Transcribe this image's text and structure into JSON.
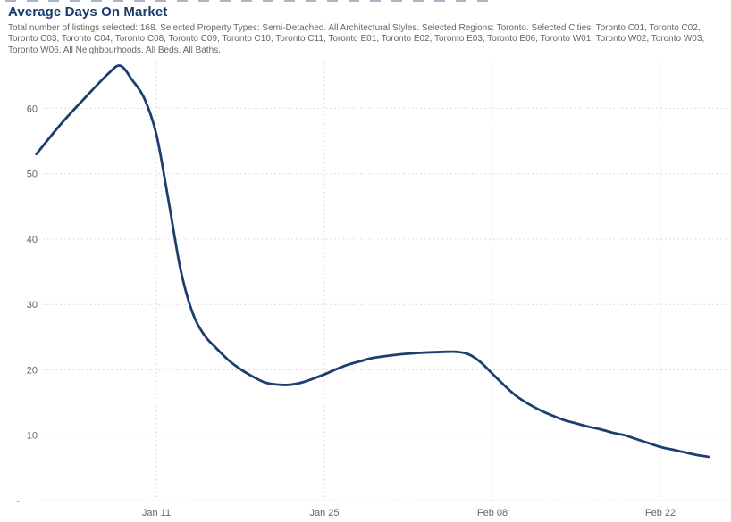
{
  "page": {
    "title": "Average Days On Market",
    "subtitle": "Total number of listings selected: 168. Selected Property Types: Semi-Detached. All Architectural Styles. Selected Regions: Toronto. Selected Cities: Toronto C01, Toronto C02, Toronto C03, Toronto C04, Toronto C08, Toronto C09, Toronto C10, Toronto C11, Toronto E01, Toronto E02, Toronto E03, Toronto E06, Toronto W01, Toronto W02, Toronto W03, Toronto W06. All Neighbourhoods. All Beds. All Baths."
  },
  "colors": {
    "title": "#1a3a6b",
    "subtitle": "#666666",
    "axis_label": "#666666",
    "gridline": "#d4d4d4",
    "series_line": "#1d3f6e",
    "background": "#ffffff"
  },
  "chart_data": {
    "type": "line",
    "title": "Average Days On Market",
    "xlabel": "",
    "ylabel": "",
    "ylim": [
      0,
      67
    ],
    "grid": "dotted",
    "legend": "none",
    "y_axis": {
      "values": [
        60,
        50,
        40,
        30,
        20,
        10,
        0
      ],
      "labels": [
        "60",
        "50",
        "40",
        "30",
        "20",
        "10",
        "-"
      ]
    },
    "x_axis": {
      "labels": [
        "Jan 11",
        "Jan 25",
        "Feb 08",
        "Feb 22"
      ],
      "days": [
        10,
        24,
        38,
        52
      ]
    },
    "series": [
      {
        "name": "Average Days On Market",
        "points": {
          "dates": [
            "Jan 01",
            "Jan 03",
            "Jan 05",
            "Jan 07",
            "Jan 08",
            "Jan 09",
            "Jan 10",
            "Jan 11",
            "Jan 12",
            "Jan 13",
            "Jan 14",
            "Jan 15",
            "Jan 16",
            "Jan 17",
            "Jan 18",
            "Jan 19",
            "Jan 20",
            "Jan 21",
            "Jan 22",
            "Jan 23",
            "Jan 24",
            "Jan 25",
            "Jan 26",
            "Jan 27",
            "Jan 28",
            "Jan 29",
            "Jan 31",
            "Feb 02",
            "Feb 04",
            "Feb 05",
            "Feb 06",
            "Feb 07",
            "Feb 08",
            "Feb 09",
            "Feb 10",
            "Feb 11",
            "Feb 12",
            "Feb 13",
            "Feb 14",
            "Feb 15",
            "Feb 16",
            "Feb 17",
            "Feb 18",
            "Feb 19",
            "Feb 20",
            "Feb 21",
            "Feb 22",
            "Feb 23",
            "Feb 24",
            "Feb 25",
            "Feb 26"
          ],
          "days": [
            0,
            2,
            4,
            6,
            7,
            8,
            9,
            10,
            11,
            12,
            13,
            14,
            15,
            16,
            17,
            18,
            19,
            20,
            21,
            22,
            23,
            24,
            25,
            26,
            27,
            28,
            30,
            32,
            34,
            35,
            36,
            37,
            38,
            39,
            40,
            41,
            42,
            43,
            44,
            45,
            46,
            47,
            48,
            49,
            50,
            51,
            52,
            53,
            54,
            55,
            56
          ],
          "values": [
            53,
            57.5,
            61.5,
            65.3,
            66.5,
            64.3,
            61.5,
            56,
            46,
            35.5,
            28.8,
            25.3,
            23.3,
            21.5,
            20.1,
            19,
            18.1,
            17.75,
            17.7,
            18,
            18.6,
            19.3,
            20.1,
            20.8,
            21.3,
            21.8,
            22.3,
            22.6,
            22.75,
            22.75,
            22.4,
            21.2,
            19.4,
            17.6,
            16,
            14.8,
            13.8,
            13,
            12.3,
            11.8,
            11.3,
            10.9,
            10.4,
            10,
            9.4,
            8.8,
            8.2,
            7.8,
            7.4,
            7,
            6.7
          ]
        }
      }
    ]
  }
}
